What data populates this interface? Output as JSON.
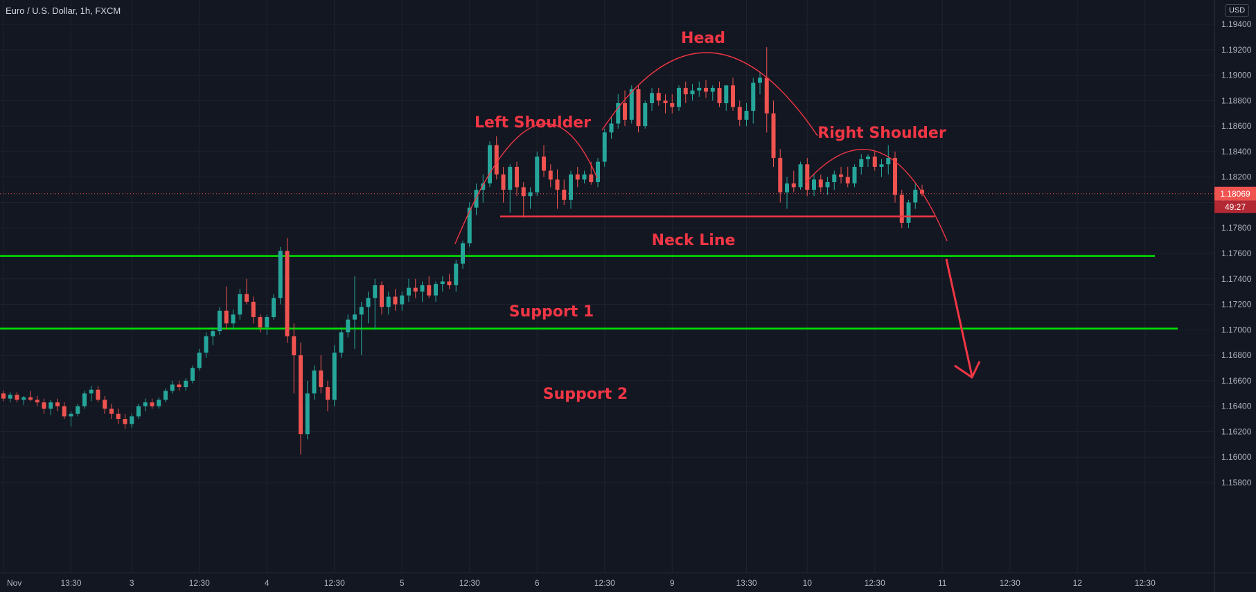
{
  "header": {
    "title": "Euro / U.S. Dollar, 1h, FXCM",
    "currency_button": "USD"
  },
  "colors": {
    "background": "#131722",
    "up": "#26a69a",
    "down": "#ef5350",
    "annotation": "#f23645",
    "support": "#00e600",
    "grid": "#1e222d",
    "axis_text": "#b2b5be"
  },
  "chart_data": {
    "type": "candlestick",
    "symbol": "Euro / U.S. Dollar",
    "interval": "1h",
    "source": "FXCM",
    "y_axis": {
      "ticks": [
        "1.15800",
        "1.16000",
        "1.16200",
        "1.16400",
        "1.16600",
        "1.16800",
        "1.17000",
        "1.17200",
        "1.17400",
        "1.17600",
        "1.17800",
        "1.18000",
        "1.18200",
        "1.18400",
        "1.18600",
        "1.18800",
        "1.19000",
        "1.19200",
        "1.19400"
      ],
      "ylim": [
        1.157,
        1.1955
      ]
    },
    "x_axis": {
      "ticks": [
        {
          "label": "Nov",
          "bar": 0
        },
        {
          "label": "13:30",
          "bar": 10
        },
        {
          "label": "3",
          "bar": 19
        },
        {
          "label": "12:30",
          "bar": 29
        },
        {
          "label": "4",
          "bar": 39
        },
        {
          "label": "12:30",
          "bar": 49
        },
        {
          "label": "5",
          "bar": 59
        },
        {
          "label": "12:30",
          "bar": 69
        },
        {
          "label": "6",
          "bar": 79
        },
        {
          "label": "12:30",
          "bar": 89
        },
        {
          "label": "9",
          "bar": 99
        },
        {
          "label": "13:30",
          "bar": 110
        },
        {
          "label": "10",
          "bar": 119
        },
        {
          "label": "12:30",
          "bar": 129
        },
        {
          "label": "11",
          "bar": 139
        },
        {
          "label": "12:30",
          "bar": 149
        },
        {
          "label": "12",
          "bar": 159
        },
        {
          "label": "12:30",
          "bar": 169
        }
      ],
      "bars_total": 180
    },
    "current_price": {
      "value": 1.18069,
      "label": "1.18069",
      "countdown": "49:27"
    },
    "candles": [
      [
        1.165,
        1.1652,
        1.1644,
        1.1646
      ],
      [
        1.1646,
        1.1651,
        1.1643,
        1.1649
      ],
      [
        1.1649,
        1.1651,
        1.1643,
        1.1645
      ],
      [
        1.1645,
        1.1648,
        1.1641,
        1.1647
      ],
      [
        1.1647,
        1.1652,
        1.1644,
        1.1645
      ],
      [
        1.1645,
        1.1648,
        1.164,
        1.1643
      ],
      [
        1.1643,
        1.1646,
        1.1634,
        1.1638
      ],
      [
        1.1638,
        1.1645,
        1.1633,
        1.1643
      ],
      [
        1.1643,
        1.1646,
        1.1636,
        1.164
      ],
      [
        1.164,
        1.1643,
        1.163,
        1.1632
      ],
      [
        1.1632,
        1.1636,
        1.1624,
        1.1634
      ],
      [
        1.1634,
        1.1642,
        1.1632,
        1.164
      ],
      [
        1.164,
        1.1652,
        1.1638,
        1.165
      ],
      [
        1.165,
        1.1656,
        1.1644,
        1.1653
      ],
      [
        1.1653,
        1.1656,
        1.1643,
        1.1645
      ],
      [
        1.1645,
        1.1648,
        1.1634,
        1.1638
      ],
      [
        1.1638,
        1.1642,
        1.163,
        1.1634
      ],
      [
        1.1634,
        1.1638,
        1.1626,
        1.163
      ],
      [
        1.163,
        1.1634,
        1.1622,
        1.1626
      ],
      [
        1.1626,
        1.1634,
        1.1623,
        1.1632
      ],
      [
        1.1632,
        1.1642,
        1.163,
        1.164
      ],
      [
        1.164,
        1.1646,
        1.1636,
        1.1643
      ],
      [
        1.1643,
        1.1646,
        1.1638,
        1.164
      ],
      [
        1.164,
        1.1647,
        1.1638,
        1.1645
      ],
      [
        1.1645,
        1.1654,
        1.1643,
        1.1652
      ],
      [
        1.1652,
        1.166,
        1.165,
        1.1657
      ],
      [
        1.1657,
        1.166,
        1.1652,
        1.1655
      ],
      [
        1.1655,
        1.1662,
        1.1652,
        1.166
      ],
      [
        1.166,
        1.1672,
        1.1658,
        1.167
      ],
      [
        1.167,
        1.1685,
        1.1668,
        1.1682
      ],
      [
        1.1682,
        1.1698,
        1.1678,
        1.1695
      ],
      [
        1.1695,
        1.1702,
        1.1688,
        1.1699
      ],
      [
        1.1699,
        1.1718,
        1.1696,
        1.1715
      ],
      [
        1.1715,
        1.1734,
        1.17,
        1.1705
      ],
      [
        1.1705,
        1.1716,
        1.17,
        1.1712
      ],
      [
        1.1712,
        1.1732,
        1.1708,
        1.1728
      ],
      [
        1.1728,
        1.174,
        1.172,
        1.1722
      ],
      [
        1.1722,
        1.1726,
        1.1705,
        1.171
      ],
      [
        1.171,
        1.1712,
        1.1698,
        1.1702
      ],
      [
        1.1702,
        1.1712,
        1.1696,
        1.171
      ],
      [
        1.171,
        1.1728,
        1.1708,
        1.1725
      ],
      [
        1.1725,
        1.1765,
        1.172,
        1.1762
      ],
      [
        1.1762,
        1.1772,
        1.169,
        1.1695
      ],
      [
        1.1695,
        1.1705,
        1.165,
        1.168
      ],
      [
        1.168,
        1.169,
        1.1602,
        1.1618
      ],
      [
        1.1618,
        1.166,
        1.1614,
        1.165
      ],
      [
        1.165,
        1.1672,
        1.1645,
        1.1668
      ],
      [
        1.1668,
        1.168,
        1.165,
        1.1655
      ],
      [
        1.1655,
        1.166,
        1.1636,
        1.1645
      ],
      [
        1.1645,
        1.1688,
        1.164,
        1.1682
      ],
      [
        1.1682,
        1.1702,
        1.1678,
        1.1698
      ],
      [
        1.1698,
        1.1712,
        1.1694,
        1.1708
      ],
      [
        1.1708,
        1.1742,
        1.1685,
        1.1712
      ],
      [
        1.1712,
        1.1722,
        1.168,
        1.1718
      ],
      [
        1.1718,
        1.173,
        1.1705,
        1.1725
      ],
      [
        1.1725,
        1.174,
        1.17,
        1.1735
      ],
      [
        1.1735,
        1.1738,
        1.1712,
        1.1718
      ],
      [
        1.1718,
        1.173,
        1.1712,
        1.1726
      ],
      [
        1.1726,
        1.1732,
        1.1715,
        1.172
      ],
      [
        1.172,
        1.173,
        1.1715,
        1.1727
      ],
      [
        1.1727,
        1.174,
        1.1722,
        1.1733
      ],
      [
        1.1733,
        1.174,
        1.1725,
        1.173
      ],
      [
        1.173,
        1.1738,
        1.1722,
        1.1735
      ],
      [
        1.1735,
        1.1742,
        1.1725,
        1.1727
      ],
      [
        1.1727,
        1.1738,
        1.1722,
        1.1736
      ],
      [
        1.1736,
        1.1742,
        1.173,
        1.1738
      ],
      [
        1.1738,
        1.1744,
        1.1732,
        1.1735
      ],
      [
        1.1735,
        1.1755,
        1.173,
        1.1752
      ],
      [
        1.1752,
        1.177,
        1.1748,
        1.1768
      ],
      [
        1.1768,
        1.18,
        1.1765,
        1.1796
      ],
      [
        1.1796,
        1.1815,
        1.179,
        1.181
      ],
      [
        1.181,
        1.1822,
        1.18,
        1.1815
      ],
      [
        1.1815,
        1.1848,
        1.1812,
        1.1845
      ],
      [
        1.1845,
        1.1852,
        1.1818,
        1.1822
      ],
      [
        1.1822,
        1.1828,
        1.18,
        1.181
      ],
      [
        1.181,
        1.183,
        1.1792,
        1.1828
      ],
      [
        1.1828,
        1.1832,
        1.1805,
        1.1812
      ],
      [
        1.1812,
        1.1816,
        1.1788,
        1.1805
      ],
      [
        1.1805,
        1.1812,
        1.1795,
        1.1808
      ],
      [
        1.1808,
        1.184,
        1.1805,
        1.1836
      ],
      [
        1.1836,
        1.1845,
        1.182,
        1.1825
      ],
      [
        1.1825,
        1.183,
        1.1812,
        1.1818
      ],
      [
        1.1818,
        1.1826,
        1.1795,
        1.181
      ],
      [
        1.181,
        1.1818,
        1.1798,
        1.1802
      ],
      [
        1.1802,
        1.1825,
        1.1795,
        1.1822
      ],
      [
        1.1822,
        1.1828,
        1.1812,
        1.1818
      ],
      [
        1.1818,
        1.1825,
        1.1815,
        1.1822
      ],
      [
        1.1822,
        1.1832,
        1.1814,
        1.1816
      ],
      [
        1.1816,
        1.1835,
        1.1812,
        1.1832
      ],
      [
        1.1832,
        1.1858,
        1.1828,
        1.1855
      ],
      [
        1.1855,
        1.1868,
        1.185,
        1.1862
      ],
      [
        1.1862,
        1.1885,
        1.1858,
        1.1878
      ],
      [
        1.1878,
        1.1888,
        1.186,
        1.1865
      ],
      [
        1.1865,
        1.1892,
        1.1862,
        1.1889
      ],
      [
        1.1889,
        1.1892,
        1.1855,
        1.186
      ],
      [
        1.186,
        1.188,
        1.1858,
        1.1878
      ],
      [
        1.1878,
        1.189,
        1.1872,
        1.1886
      ],
      [
        1.1886,
        1.189,
        1.1876,
        1.188
      ],
      [
        1.188,
        1.1885,
        1.187,
        1.1878
      ],
      [
        1.1878,
        1.1885,
        1.187,
        1.1875
      ],
      [
        1.1875,
        1.1892,
        1.1872,
        1.189
      ],
      [
        1.189,
        1.1895,
        1.1878,
        1.1885
      ],
      [
        1.1885,
        1.1893,
        1.188,
        1.1888
      ],
      [
        1.1888,
        1.1895,
        1.1883,
        1.189
      ],
      [
        1.189,
        1.1896,
        1.1882,
        1.1887
      ],
      [
        1.1887,
        1.1892,
        1.188,
        1.189
      ],
      [
        1.189,
        1.1895,
        1.1875,
        1.1878
      ],
      [
        1.1878,
        1.189,
        1.1872,
        1.1892
      ],
      [
        1.1892,
        1.1898,
        1.1872,
        1.1875
      ],
      [
        1.1875,
        1.188,
        1.186,
        1.1865
      ],
      [
        1.1865,
        1.1878,
        1.186,
        1.1872
      ],
      [
        1.1872,
        1.1898,
        1.1862,
        1.1894
      ],
      [
        1.1894,
        1.1902,
        1.1885,
        1.1898
      ],
      [
        1.1898,
        1.1922,
        1.1855,
        1.187
      ],
      [
        1.187,
        1.188,
        1.1828,
        1.1835
      ],
      [
        1.1835,
        1.1842,
        1.18,
        1.1808
      ],
      [
        1.1808,
        1.182,
        1.1795,
        1.1815
      ],
      [
        1.1815,
        1.1825,
        1.1808,
        1.1812
      ],
      [
        1.1812,
        1.1832,
        1.181,
        1.183
      ],
      [
        1.183,
        1.1835,
        1.1805,
        1.181
      ],
      [
        1.181,
        1.1822,
        1.1805,
        1.1818
      ],
      [
        1.1818,
        1.1822,
        1.1808,
        1.1812
      ],
      [
        1.1812,
        1.182,
        1.1806,
        1.1816
      ],
      [
        1.1816,
        1.1825,
        1.181,
        1.1822
      ],
      [
        1.1822,
        1.1828,
        1.1815,
        1.182
      ],
      [
        1.182,
        1.1828,
        1.1812,
        1.1815
      ],
      [
        1.1815,
        1.183,
        1.1812,
        1.1828
      ],
      [
        1.1828,
        1.1838,
        1.1822,
        1.1834
      ],
      [
        1.1834,
        1.1838,
        1.1828,
        1.1836
      ],
      [
        1.1836,
        1.184,
        1.1825,
        1.1828
      ],
      [
        1.1828,
        1.1834,
        1.182,
        1.183
      ],
      [
        1.183,
        1.1845,
        1.1822,
        1.1835
      ],
      [
        1.1835,
        1.184,
        1.18,
        1.1806
      ],
      [
        1.1806,
        1.181,
        1.178,
        1.1784
      ],
      [
        1.1784,
        1.1802,
        1.178,
        1.18
      ],
      [
        1.18,
        1.1815,
        1.1795,
        1.181
      ],
      [
        1.181,
        1.1814,
        1.1805,
        1.1807
      ]
    ],
    "annotations": [
      {
        "text": "Head",
        "type": "label"
      },
      {
        "text": "Left Shoulder",
        "type": "label"
      },
      {
        "text": "Right Shoulder",
        "type": "label"
      },
      {
        "text": "Neck Line",
        "type": "label",
        "price": 1.1789
      },
      {
        "text": "Support 1",
        "type": "label",
        "price": 1.1758
      },
      {
        "text": "Support 2",
        "type": "label",
        "price": 1.1701
      }
    ]
  }
}
